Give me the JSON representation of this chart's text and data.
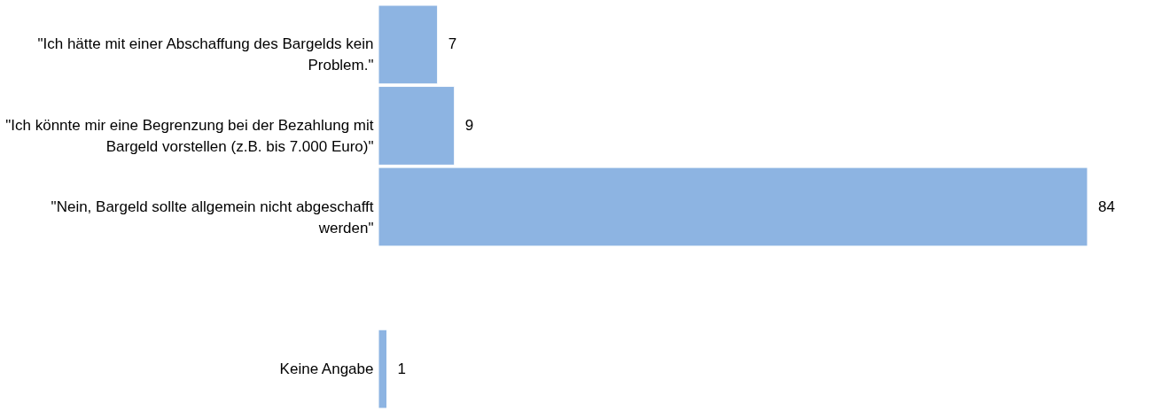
{
  "chart_data": {
    "type": "bar",
    "orientation": "horizontal",
    "data_labels": true,
    "color": "#8db4e2",
    "categories": [
      "\"Ich hätte mit einer Abschaffung des Bargelds kein Problem.\"",
      "\"Ich könnte mir eine Begrenzung bei der Bezahlung mit Bargeld vorstellen (z.B. bis 7.000 Euro)\"",
      "\"Nein, Bargeld sollte allgemein nicht abgeschafft werden\"",
      null,
      "Keine Angabe"
    ],
    "values": [
      7,
      9,
      84,
      null,
      1
    ]
  }
}
